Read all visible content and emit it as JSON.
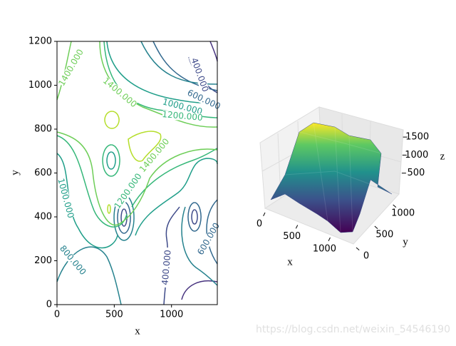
{
  "chart_data": [
    {
      "type": "contour",
      "xlabel": "x",
      "ylabel": "y",
      "xlim": [
        0,
        1400
      ],
      "ylim": [
        0,
        1200
      ],
      "xticks": [
        0,
        500,
        1000
      ],
      "yticks": [
        0,
        200,
        400,
        600,
        800,
        1000,
        1200
      ],
      "levels": [
        200,
        400,
        600,
        800,
        1000,
        1200,
        1400,
        1600
      ],
      "colors": [
        "#46327e",
        "#3e4a89",
        "#31688e",
        "#26828e",
        "#1f9e89",
        "#35b779",
        "#6ece58",
        "#b5de2b"
      ],
      "contour_labels": [
        {
          "value": 1400,
          "label": "1400.000"
        },
        {
          "value": 1400,
          "label": "1400.000"
        },
        {
          "value": 1000,
          "label": "1000.000"
        },
        {
          "value": 1200,
          "label": "1200.000"
        },
        {
          "value": 600,
          "label": "600.000"
        },
        {
          "value": 400,
          "label": "400.000"
        },
        {
          "value": 1400,
          "label": "1400.000"
        },
        {
          "value": 1200,
          "label": "1200.000"
        },
        {
          "value": 1000,
          "label": "1000.000"
        },
        {
          "value": 800,
          "label": "800.000"
        },
        {
          "value": 400,
          "label": "400.000"
        },
        {
          "value": 600,
          "label": "600.000"
        }
      ]
    },
    {
      "type": "surface3d",
      "xlabel": "x",
      "ylabel": "y",
      "zlabel": "z",
      "xticks": [
        0,
        500,
        1000
      ],
      "yticks": [
        0,
        500,
        1000
      ],
      "zticks": [
        500,
        1000,
        1500
      ]
    }
  ],
  "watermark": "https://blog.csdn.net/weixin_54546190"
}
